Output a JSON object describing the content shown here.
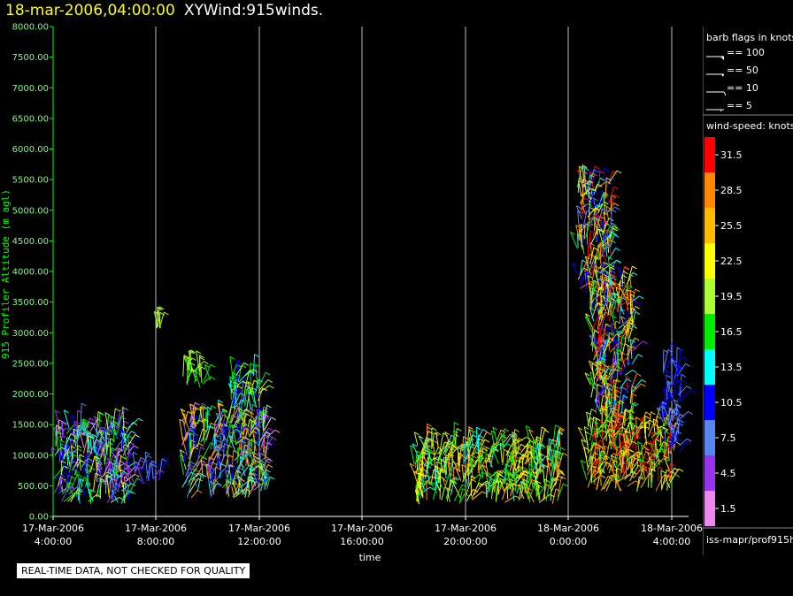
{
  "header": {
    "datetime": "18-mar-2006,04:00:00",
    "name": "XYWind:915winds."
  },
  "chart_data": {
    "type": "scatter",
    "subtype": "wind-barb",
    "ylabel": "915 Profiler Altitude (m agl)",
    "xlabel": "time",
    "ylim": [
      0,
      8000
    ],
    "yticks": [
      "0.00",
      "500.00",
      "1000.00",
      "1500.00",
      "2000.00",
      "2500.00",
      "3000.00",
      "3500.00",
      "4000.00",
      "4500.00",
      "5000.00",
      "5500.00",
      "6000.00",
      "6500.00",
      "7000.00",
      "7500.00",
      "8000.00"
    ],
    "xticks": [
      {
        "date": "17-Mar-2006",
        "time": "4:00:00"
      },
      {
        "date": "17-Mar-2006",
        "time": "8:00:00"
      },
      {
        "date": "17-Mar-2006",
        "time": "12:00:00"
      },
      {
        "date": "17-Mar-2006",
        "time": "16:00:00"
      },
      {
        "date": "17-Mar-2006",
        "time": "20:00:00"
      },
      {
        "date": "18-Mar-2006",
        "time": "0:00:00"
      },
      {
        "date": "18-Mar-2006",
        "time": "4:00:00"
      }
    ],
    "grid": "vertical",
    "colors": {
      "axis": "#00ff00",
      "grid": "#bbbbbb"
    },
    "wind_clusters": [
      {
        "t0": "17-Mar-2006 4:00",
        "t1": "17-Mar-2006 7:00",
        "alt_range": [
          200,
          1500
        ],
        "speed_range": [
          1.5,
          22
        ]
      },
      {
        "t0": "17-Mar-2006 8:00",
        "t1": "17-Mar-2006 8:10",
        "alt_range": [
          3050,
          3100
        ],
        "speed_range": [
          19,
          23
        ]
      },
      {
        "t0": "17-Mar-2006 7:00",
        "t1": "17-Mar-2006 8:10",
        "alt_range": [
          500,
          800
        ],
        "speed_range": [
          4,
          12
        ]
      },
      {
        "t0": "17-Mar-2006 9:00",
        "t1": "17-Mar-2006 12:20",
        "alt_range": [
          300,
          1600
        ],
        "speed_range": [
          1.5,
          30
        ]
      },
      {
        "t0": "17-Mar-2006 9:00",
        "t1": "17-Mar-2006 10:10",
        "alt_range": [
          2100,
          2400
        ],
        "speed_range": [
          17,
          21
        ]
      },
      {
        "t0": "17-Mar-2006 10:50",
        "t1": "17-Mar-2006 12:00",
        "alt_range": [
          1700,
          2300
        ],
        "speed_range": [
          8,
          22
        ]
      },
      {
        "t0": "17-Mar-2006 18:00",
        "t1": "17-Mar-2006 23:40",
        "alt_range": [
          200,
          1200
        ],
        "speed_range": [
          13,
          28
        ]
      },
      {
        "t0": "18-Mar-2006 0:20",
        "t1": "18-Mar-2006 1:40",
        "alt_range": [
          3500,
          5500
        ],
        "speed_range": [
          7,
          33
        ]
      },
      {
        "t0": "18-Mar-2006 0:50",
        "t1": "18-Mar-2006 2:30",
        "alt_range": [
          1500,
          3800
        ],
        "speed_range": [
          4,
          33
        ]
      },
      {
        "t0": "18-Mar-2006 0:40",
        "t1": "18-Mar-2006 4:00",
        "alt_range": [
          400,
          1500
        ],
        "speed_range": [
          16,
          34
        ]
      },
      {
        "t0": "18-Mar-2006 3:40",
        "t1": "18-Mar-2006 4:20",
        "alt_range": [
          1000,
          2500
        ],
        "speed_range": [
          6,
          11
        ]
      }
    ]
  },
  "legend": {
    "barb_title": "barb flags in knots",
    "barbs": [
      {
        "label": "== 100"
      },
      {
        "label": "== 50"
      },
      {
        "label": "== 10"
      },
      {
        "label": "== 5"
      }
    ],
    "speed_title": "wind-speed: knots",
    "scale": [
      {
        "label": "31.5",
        "color": "#ff0000"
      },
      {
        "label": "28.5",
        "color": "#ff8800"
      },
      {
        "label": "25.5",
        "color": "#ffbb00"
      },
      {
        "label": "22.5",
        "color": "#ffff00"
      },
      {
        "label": "19.5",
        "color": "#aaff33"
      },
      {
        "label": "16.5",
        "color": "#00ee00"
      },
      {
        "label": "13.5",
        "color": "#00ffff"
      },
      {
        "label": "10.5",
        "color": "#0000ff"
      },
      {
        "label": "7.5",
        "color": "#5588ee"
      },
      {
        "label": "4.5",
        "color": "#9933ee"
      },
      {
        "label": "1.5",
        "color": "#ee88ee"
      }
    ],
    "source": "iss-mapr/prof915h"
  },
  "quality_note": "REAL-TIME DATA, NOT CHECKED FOR QUALITY"
}
